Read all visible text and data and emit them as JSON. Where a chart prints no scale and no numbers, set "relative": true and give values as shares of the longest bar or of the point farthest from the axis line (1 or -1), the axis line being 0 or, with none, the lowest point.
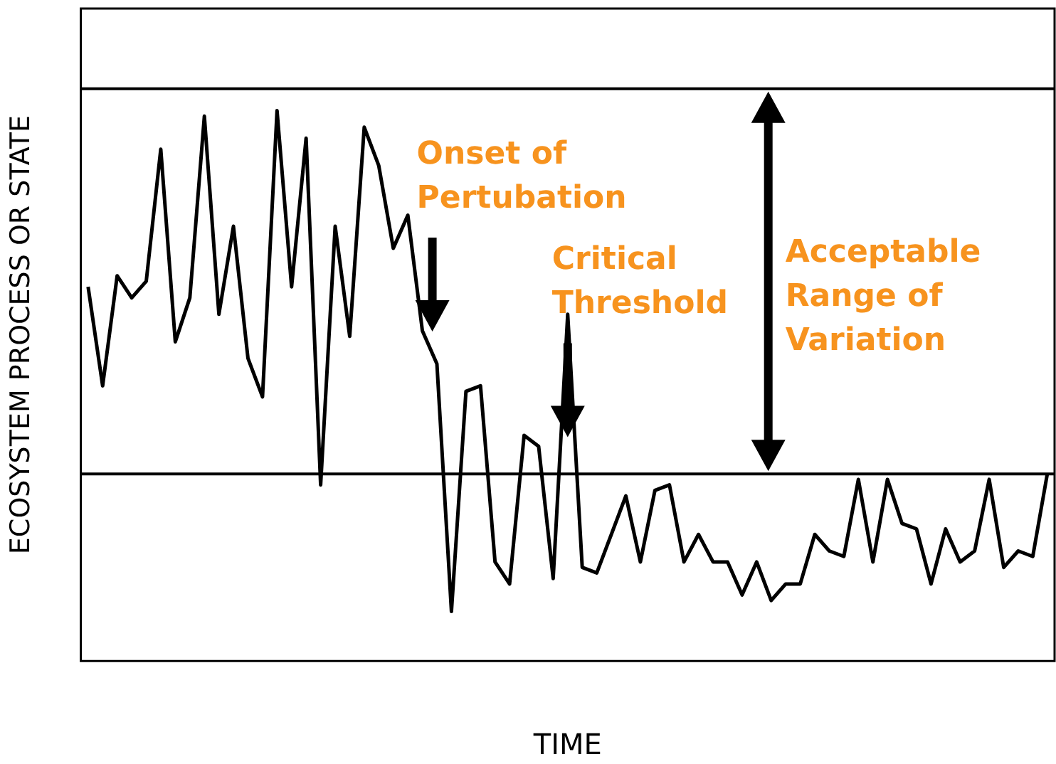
{
  "chart_data": {
    "type": "line",
    "relative": true,
    "xlabel": "TIME",
    "ylabel": "ECOSYSTEM PROCESS OR STATE",
    "categories": [
      null,
      null,
      null,
      null,
      null,
      null,
      null,
      null,
      null,
      null,
      null,
      null,
      null,
      null,
      null,
      null,
      null,
      null,
      null,
      null,
      null,
      null,
      null,
      null,
      null,
      null,
      null,
      null,
      null,
      null,
      null,
      null,
      null,
      null,
      null,
      null,
      null,
      null,
      null,
      null,
      null,
      null,
      null,
      null,
      null,
      null,
      null,
      null,
      null,
      null,
      null,
      null,
      null,
      null,
      null,
      null,
      null,
      null,
      null,
      null,
      null,
      null,
      null,
      null,
      null,
      null,
      null
    ],
    "series": [
      {
        "color": "#000000",
        "values": [
          0.68,
          0.5,
          0.7,
          0.66,
          0.69,
          0.93,
          0.58,
          0.66,
          0.99,
          0.63,
          0.79,
          0.55,
          0.48,
          1.0,
          0.68,
          0.95,
          0.32,
          0.79,
          0.59,
          0.97,
          0.9,
          0.75,
          0.81,
          0.6,
          0.54,
          0.09,
          0.49,
          0.5,
          0.18,
          0.14,
          0.41,
          0.39,
          0.15,
          0.63,
          0.17,
          0.16,
          0.23,
          0.3,
          0.18,
          0.31,
          0.32,
          0.18,
          0.23,
          0.18,
          0.18,
          0.12,
          0.18,
          0.11,
          0.14,
          0.14,
          0.23,
          0.2,
          0.19,
          0.33,
          0.18,
          0.33,
          0.25,
          0.24,
          0.14,
          0.24,
          0.18,
          0.2,
          0.33,
          0.17,
          0.2,
          0.19,
          0.34
        ]
      }
    ],
    "ref_lines": [
      {
        "axis": "y",
        "value": 1.04
      },
      {
        "axis": "y",
        "value": 0.34
      }
    ],
    "annotations": [
      "Onset of Pertubation",
      "Critical Threshold",
      "Acceptable Range of Variation"
    ],
    "marker": "none",
    "line_style": "solid",
    "grid": false,
    "legend": false
  }
}
